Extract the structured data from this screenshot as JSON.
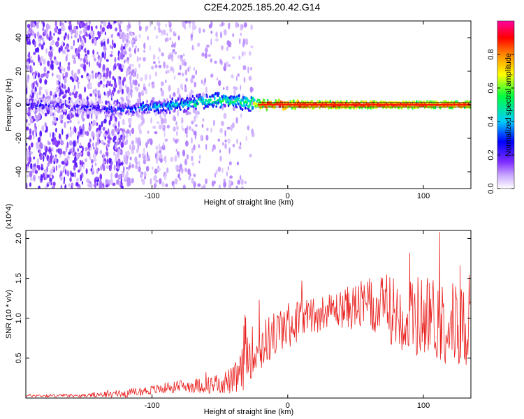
{
  "title": "C2E4.2025.185.20.42.G14",
  "colors": {
    "snr_line": "#e8201e",
    "frame": "#000000"
  },
  "chart_data": [
    {
      "type": "heatmap",
      "name": "spectrogram",
      "xlabel": "Height of straight line (km)",
      "ylabel": "Frequency (Hz)",
      "xlim": [
        -193,
        135
      ],
      "ylim": [
        -50,
        50
      ],
      "xticks": [
        -100,
        0,
        100
      ],
      "xtick_labels": [
        "-100",
        "0",
        "100"
      ],
      "yticks": [
        40,
        20,
        0,
        -20,
        -40
      ],
      "ytick_labels": [
        "40",
        "20",
        "0",
        "-20",
        "-40"
      ],
      "grid": false,
      "colorbar": {
        "label": "Normalized spectral amplitude",
        "range": [
          0,
          1
        ],
        "ticks": [
          0.0,
          0.2,
          0.4,
          0.6,
          0.8
        ],
        "tick_labels": [
          "0.0",
          "0.2",
          "0.4",
          "0.6",
          "0.8"
        ],
        "colormap": "rainbow (white → violet → blue → cyan → green → yellow → orange → red → magenta)"
      },
      "ridge": [
        {
          "x": -190,
          "f": 0,
          "amp": 0.3
        },
        {
          "x": -160,
          "f": -1,
          "amp": 0.25
        },
        {
          "x": -130,
          "f": -3,
          "amp": 0.3
        },
        {
          "x": -110,
          "f": -2,
          "amp": 0.4
        },
        {
          "x": -90,
          "f": -1,
          "amp": 0.45
        },
        {
          "x": -70,
          "f": 1,
          "amp": 0.5
        },
        {
          "x": -55,
          "f": 3,
          "amp": 0.55
        },
        {
          "x": -40,
          "f": 2,
          "amp": 0.55
        },
        {
          "x": -28,
          "f": 1,
          "amp": 0.6
        },
        {
          "x": -20,
          "f": 0,
          "amp": 0.9
        },
        {
          "x": 0,
          "f": 0,
          "amp": 0.95
        },
        {
          "x": 20,
          "f": 0,
          "amp": 0.95
        },
        {
          "x": 60,
          "f": 0,
          "amp": 0.95
        },
        {
          "x": 100,
          "f": 0,
          "amp": 0.9
        },
        {
          "x": 135,
          "f": 0,
          "amp": 0.9
        }
      ]
    },
    {
      "type": "line",
      "name": "snr",
      "xlabel": "Height of straight line (km)",
      "ylabel": "SNR (10 * v/v)",
      "y_multiplier": "(x10^4)",
      "xlim": [
        -193,
        135
      ],
      "ylim": [
        0,
        2.1
      ],
      "xticks": [
        -100,
        0,
        100
      ],
      "xtick_labels": [
        "-100",
        "0",
        "100"
      ],
      "yticks": [
        0.5,
        1.0,
        1.5,
        2.0
      ],
      "ytick_labels": [
        "0.5",
        "1.0",
        "1.5",
        "2.0"
      ],
      "grid": false,
      "envelope": {
        "x": [
          -193,
          -150,
          -120,
          -100,
          -80,
          -60,
          -40,
          -32,
          -30,
          -25,
          -20,
          -15,
          -10,
          0,
          10,
          20,
          30,
          40,
          50,
          60,
          70,
          80,
          90,
          100,
          110,
          120,
          135
        ],
        "mean": [
          0.03,
          0.03,
          0.06,
          0.1,
          0.15,
          0.16,
          0.22,
          0.35,
          0.55,
          0.6,
          0.65,
          0.72,
          0.8,
          0.9,
          1.0,
          1.05,
          1.1,
          1.12,
          1.15,
          1.15,
          1.12,
          1.1,
          1.0,
          1.05,
          1.0,
          0.95,
          0.9
        ],
        "spread": [
          0.02,
          0.02,
          0.05,
          0.06,
          0.08,
          0.1,
          0.18,
          0.35,
          0.4,
          0.3,
          0.35,
          0.3,
          0.3,
          0.3,
          0.25,
          0.25,
          0.2,
          0.25,
          0.3,
          0.35,
          0.4,
          0.45,
          0.5,
          0.55,
          0.55,
          0.55,
          0.5
        ]
      },
      "peaks": [
        {
          "x": -31,
          "y": 1.01
        },
        {
          "x": -21,
          "y": 1.23
        },
        {
          "x": 112,
          "y": 2.08
        },
        {
          "x": 90,
          "y": 1.82
        },
        {
          "x": 127,
          "y": 1.66
        }
      ]
    }
  ]
}
